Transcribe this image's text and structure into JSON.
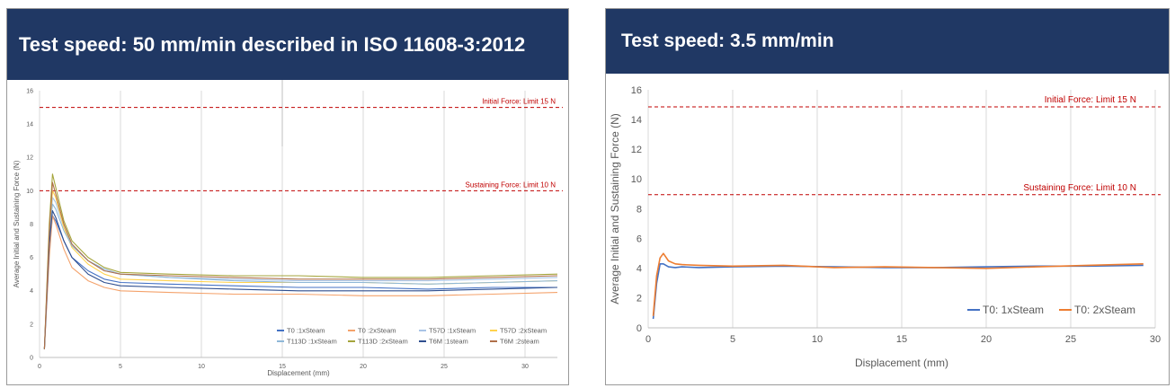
{
  "colors": {
    "banner_bg": "#203864",
    "banner_text": "#ffffff",
    "limit_line": "#c00000",
    "grid": "#d9d9d9",
    "axis_text": "#595959"
  },
  "panels": [
    {
      "banner_title": "Test speed: 50 mm/min described in ISO 11608-3:2012"
    },
    {
      "banner_title": "Test speed: 3.5 mm/min"
    }
  ],
  "chart_data": [
    {
      "type": "line",
      "xlabel": "Displacement (mm)",
      "ylabel": "Average Initial and Sustaining Force (N)",
      "xlim": [
        0,
        32
      ],
      "ylim": [
        0,
        16
      ],
      "xticks": [
        0,
        5,
        10,
        15,
        20,
        25,
        30
      ],
      "yticks": [
        0,
        2,
        4,
        6,
        8,
        10,
        12,
        14,
        16
      ],
      "grid": "vertical",
      "legend_position": "bottom-right",
      "annotations": [
        {
          "text": "Initial Force: Limit 15 N",
          "y": 15
        },
        {
          "text": "Sustaining Force: Limit 10 N",
          "y": 10
        }
      ],
      "series": [
        {
          "name": "T0 :1xSteam",
          "color": "#4472c4",
          "x": [
            0.3,
            0.6,
            0.8,
            1,
            1.5,
            2,
            3,
            4,
            5,
            8,
            12,
            16,
            20,
            24,
            28,
            32
          ],
          "y": [
            0.5,
            6.5,
            8.5,
            8.2,
            7.0,
            6.0,
            5.2,
            4.7,
            4.5,
            4.4,
            4.3,
            4.2,
            4.2,
            4.1,
            4.2,
            4.2
          ]
        },
        {
          "name": "T0 :2xSteam",
          "color": "#f4a26b",
          "x": [
            0.3,
            0.6,
            0.8,
            1,
            1.5,
            2,
            3,
            4,
            5,
            8,
            12,
            16,
            20,
            24,
            28,
            32
          ],
          "y": [
            0.5,
            6.0,
            8.5,
            8.0,
            6.5,
            5.4,
            4.6,
            4.2,
            4.0,
            3.9,
            3.8,
            3.8,
            3.7,
            3.7,
            3.8,
            3.9
          ]
        },
        {
          "name": "T57D :1xSteam",
          "color": "#a9c4e6",
          "x": [
            0.3,
            0.6,
            0.8,
            1,
            1.5,
            2,
            3,
            4,
            5,
            8,
            12,
            16,
            20,
            24,
            28,
            32
          ],
          "y": [
            0.5,
            7.0,
            9.6,
            9.3,
            7.8,
            6.8,
            5.8,
            5.2,
            5.0,
            4.8,
            4.7,
            4.6,
            4.6,
            4.6,
            4.7,
            4.8
          ]
        },
        {
          "name": "T57D :2xSteam",
          "color": "#ffd24d",
          "x": [
            0.3,
            0.6,
            0.8,
            1,
            1.5,
            2,
            3,
            4,
            5,
            8,
            12,
            16,
            20,
            24,
            28,
            32
          ],
          "y": [
            0.5,
            7.5,
            10.0,
            9.6,
            7.8,
            6.6,
            5.6,
            5.0,
            4.7,
            4.6,
            4.5,
            4.5,
            4.5,
            4.4,
            4.5,
            4.6
          ]
        },
        {
          "name": "T113D :1xSteam",
          "color": "#8fb8d8",
          "x": [
            0.3,
            0.6,
            0.8,
            1,
            1.5,
            2,
            3,
            4,
            5,
            8,
            12,
            16,
            20,
            24,
            28,
            32
          ],
          "y": [
            0.5,
            7.2,
            9.2,
            8.9,
            7.6,
            6.7,
            5.8,
            5.3,
            5.0,
            4.8,
            4.6,
            4.5,
            4.5,
            4.4,
            4.5,
            4.6
          ]
        },
        {
          "name": "T113D :2xSteam",
          "color": "#a5a53c",
          "x": [
            0.3,
            0.6,
            0.8,
            1,
            1.5,
            2,
            3,
            4,
            5,
            8,
            12,
            16,
            20,
            24,
            28,
            32
          ],
          "y": [
            0.5,
            8.0,
            11.0,
            10.2,
            8.2,
            7.0,
            6.0,
            5.4,
            5.1,
            5.0,
            4.9,
            4.9,
            4.8,
            4.8,
            4.9,
            5.0
          ]
        },
        {
          "name": "T6M :1steam",
          "color": "#2f4f8f",
          "x": [
            0.3,
            0.6,
            0.8,
            1,
            1.5,
            2,
            3,
            4,
            5,
            8,
            12,
            16,
            20,
            24,
            28,
            32
          ],
          "y": [
            0.5,
            6.8,
            8.8,
            8.4,
            7.0,
            6.0,
            5.0,
            4.5,
            4.3,
            4.2,
            4.1,
            4.0,
            4.0,
            4.0,
            4.1,
            4.2
          ]
        },
        {
          "name": "T6M :2steam",
          "color": "#b0704a",
          "x": [
            0.3,
            0.6,
            0.8,
            1,
            1.5,
            2,
            3,
            4,
            5,
            8,
            12,
            16,
            20,
            24,
            28,
            32
          ],
          "y": [
            0.5,
            7.5,
            10.5,
            9.8,
            8.0,
            6.8,
            5.8,
            5.2,
            5.0,
            4.9,
            4.8,
            4.7,
            4.7,
            4.7,
            4.8,
            4.9
          ]
        }
      ]
    },
    {
      "type": "line",
      "xlabel": "Displacement (mm)",
      "ylabel": "Average Initial and Sustaining Force (N)",
      "xlim": [
        0,
        30
      ],
      "ylim": [
        0,
        16
      ],
      "xticks": [
        0,
        5,
        10,
        15,
        20,
        25,
        30
      ],
      "yticks": [
        0,
        2,
        4,
        6,
        8,
        10,
        12,
        14,
        16
      ],
      "grid": "vertical",
      "legend_position": "bottom-right",
      "annotations": [
        {
          "text": "Initial Force: Limit 15 N",
          "y": 14.85
        },
        {
          "text": "Sustaining Force: Limit 10 N",
          "y": 8.95
        }
      ],
      "series": [
        {
          "name": "T0: 1xSteam",
          "color": "#4472c4",
          "x": [
            0.3,
            0.5,
            0.7,
            0.9,
            1.2,
            1.6,
            2,
            3,
            5,
            8,
            11,
            14,
            17,
            20,
            23,
            26,
            29.3
          ],
          "y": [
            0.6,
            3.0,
            4.3,
            4.3,
            4.1,
            4.05,
            4.1,
            4.05,
            4.1,
            4.15,
            4.1,
            4.05,
            4.05,
            4.1,
            4.15,
            4.15,
            4.2
          ]
        },
        {
          "name": "T0: 2xSteam",
          "color": "#ed7d31",
          "x": [
            0.3,
            0.5,
            0.7,
            0.9,
            1.2,
            1.6,
            2,
            3,
            5,
            8,
            11,
            14,
            17,
            20,
            23,
            26,
            29.3
          ],
          "y": [
            0.8,
            3.5,
            4.7,
            5.0,
            4.5,
            4.3,
            4.25,
            4.2,
            4.15,
            4.2,
            4.05,
            4.1,
            4.05,
            4.0,
            4.1,
            4.2,
            4.3
          ]
        }
      ]
    }
  ]
}
